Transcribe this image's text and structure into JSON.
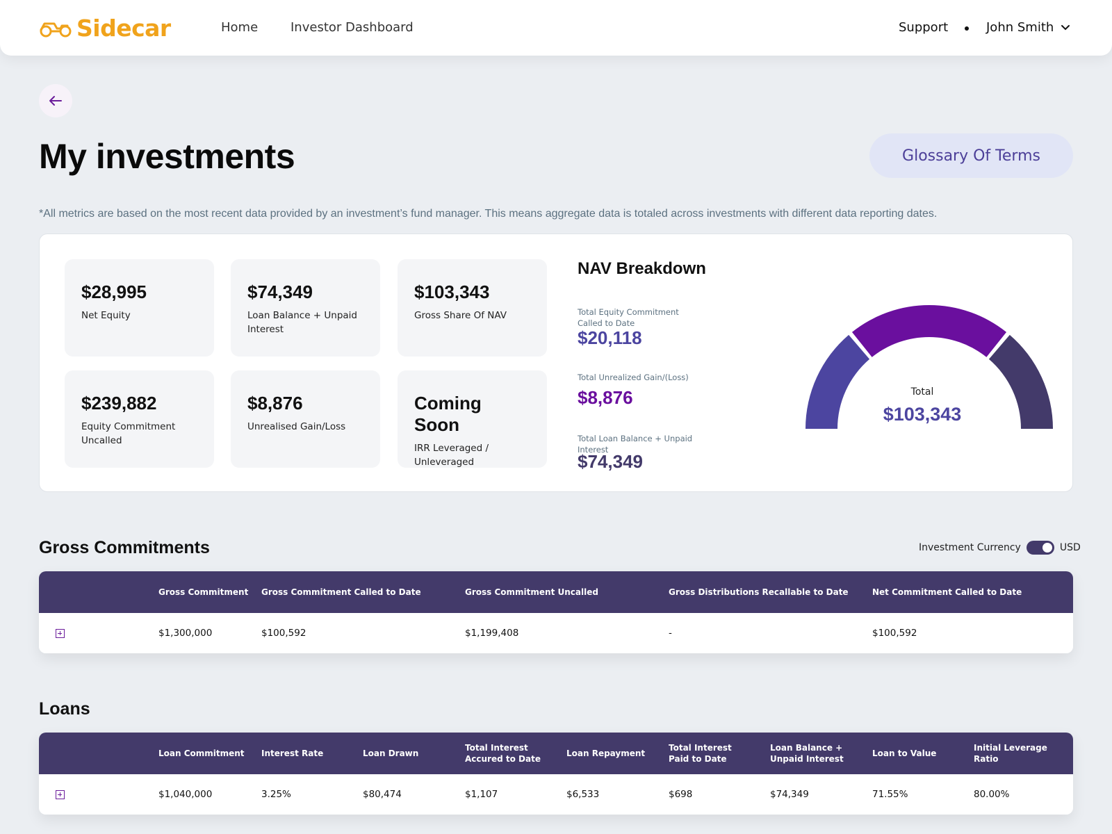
{
  "header": {
    "logo_text": "Sidecar",
    "nav": {
      "home": "Home",
      "dashboard": "Investor Dashboard"
    },
    "support": "Support",
    "user_name": "John Smith"
  },
  "page": {
    "title": "My investments",
    "glossary_label": "Glossary Of Terms",
    "disclaimer": "*All metrics are based on the most recent data provided by an investment’s fund manager. This means aggregate data is totaled across investments with different data reporting dates."
  },
  "metrics": [
    {
      "value": "$28,995",
      "label": "Net Equity"
    },
    {
      "value": "$74,349",
      "label": "Loan Balance + Unpaid Interest"
    },
    {
      "value": "$103,343",
      "label": "Gross Share Of NAV"
    },
    {
      "value": "$239,882",
      "label": "Equity Commitment Uncalled"
    },
    {
      "value": "$8,876",
      "label": "Unrealised Gain/Loss"
    },
    {
      "value": "Coming Soon",
      "label": "IRR Leveraged / Unleveraged"
    }
  ],
  "nav_breakdown": {
    "title": "NAV Breakdown",
    "items": [
      {
        "label": "Total Equity Commitment Called to Date",
        "value": "$20,118"
      },
      {
        "label": "Total Unrealized Gain/(Loss)",
        "value": "$8,876"
      },
      {
        "label": "Total Loan Balance + Unpaid Interest",
        "value": "$74,349"
      }
    ],
    "total_label": "Total",
    "total_value": "$103,343"
  },
  "chart_data": {
    "type": "pie",
    "variant": "semi-donut gauge",
    "categories": [
      "Total Equity Commitment Called to Date",
      "Total Unrealized Gain/(Loss)",
      "Total Loan Balance + Unpaid Interest"
    ],
    "values": [
      20118,
      8876,
      74349
    ],
    "total": 103343
  },
  "colors": {
    "brand": "#f0a31c",
    "equity": "#4c45a0",
    "gain": "#6a0f9e",
    "loan": "#433a6a",
    "table_header": "#433a6a"
  },
  "gross_commitments": {
    "title": "Gross Commitments",
    "currency_label": "Investment Currency",
    "currency_value": "USD",
    "columns": [
      "Gross Commitment",
      "Gross Commitment Called to Date",
      "Gross Commitment Uncalled",
      "Gross Distributions Recallable to Date",
      "Net Commitment Called to Date"
    ],
    "row": [
      "$1,300,000",
      "$100,592",
      "$1,199,408",
      "-",
      "$100,592"
    ]
  },
  "loans": {
    "title": "Loans",
    "columns": [
      "Loan Commitment",
      "Interest Rate",
      "Loan Drawn",
      "Total Interest Accured to Date",
      "Loan Repayment",
      "Total Interest Paid to Date",
      "Loan Balance + Unpaid Interest",
      "Loan to Value",
      "Initial Leverage Ratio"
    ],
    "row": [
      "$1,040,000",
      "3.25%",
      "$80,474",
      "$1,107",
      "$6,533",
      "$698",
      "$74,349",
      "71.55%",
      "80.00%"
    ]
  }
}
